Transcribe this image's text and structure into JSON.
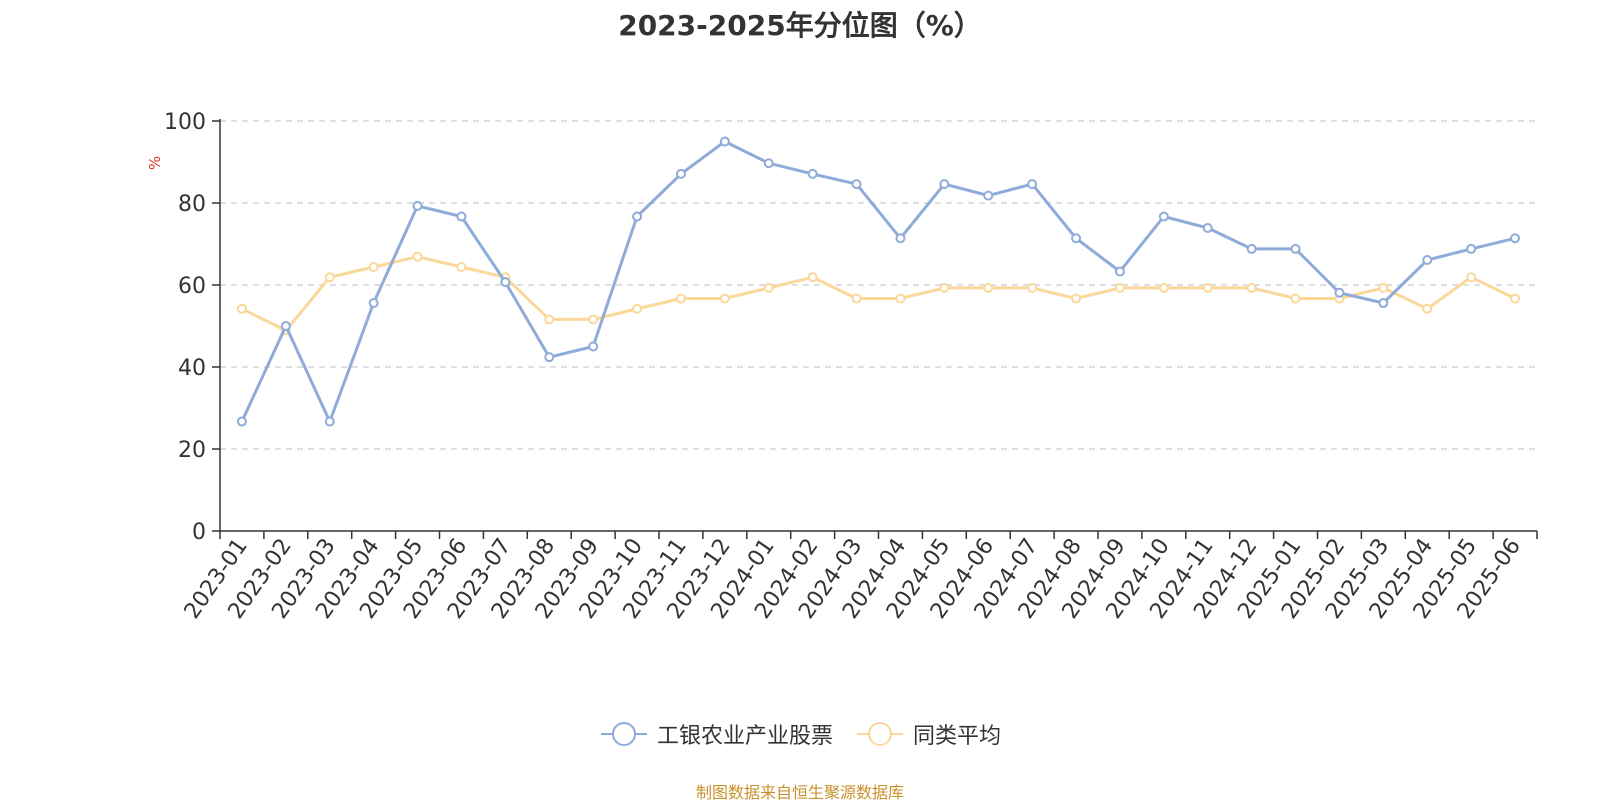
{
  "colors": {
    "series_1": "#8eabd9",
    "series_2": "#fbd89a",
    "grid": "#cccccc",
    "axis": "#333333",
    "ylabel": "#e4342a",
    "source": "#c9912b"
  },
  "source_note": "制图数据来自恒生聚源数据库",
  "chart_data": {
    "type": "line",
    "title": "2023-2025年分位图（%）",
    "xlabel": "",
    "ylabel": "%",
    "ylim": [
      0,
      100
    ],
    "yticks": [
      0,
      20,
      40,
      60,
      80,
      100
    ],
    "grid": true,
    "legend_position": "bottom",
    "categories": [
      "2023-01",
      "2023-02",
      "2023-03",
      "2023-04",
      "2023-05",
      "2023-06",
      "2023-07",
      "2023-08",
      "2023-09",
      "2023-10",
      "2023-11",
      "2023-12",
      "2024-01",
      "2024-02",
      "2024-03",
      "2024-04",
      "2024-05",
      "2024-06",
      "2024-07",
      "2024-08",
      "2024-09",
      "2024-10",
      "2024-11",
      "2024-12",
      "2025-01",
      "2025-02",
      "2025-03",
      "2025-04",
      "2025-05",
      "2025-06"
    ],
    "series": [
      {
        "name": "工银农业产业股票",
        "values": [
          26.7,
          50.0,
          26.7,
          55.6,
          79.3,
          76.7,
          60.7,
          42.4,
          45.0,
          76.7,
          87.1,
          95.0,
          89.7,
          87.1,
          84.6,
          71.4,
          84.6,
          81.8,
          84.6,
          71.4,
          63.3,
          76.7,
          73.9,
          68.8,
          68.8,
          58.1,
          55.6,
          66.1,
          68.8,
          71.4
        ]
      },
      {
        "name": "同类平均",
        "values": [
          54.2,
          48.9,
          61.9,
          64.4,
          66.9,
          64.4,
          61.9,
          51.6,
          51.6,
          54.2,
          56.7,
          56.7,
          59.3,
          61.9,
          56.7,
          56.7,
          59.3,
          59.3,
          59.3,
          56.7,
          59.3,
          59.3,
          59.3,
          59.3,
          56.7,
          56.7,
          59.3,
          54.2,
          61.9,
          56.7
        ]
      }
    ]
  }
}
